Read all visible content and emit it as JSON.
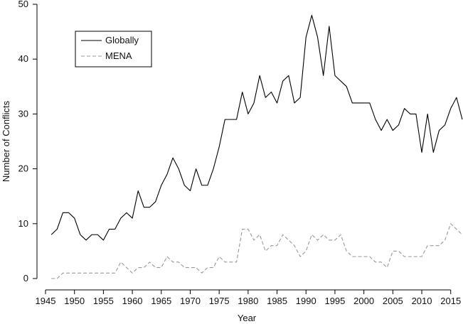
{
  "chart_data": {
    "type": "line",
    "xlabel": "Year",
    "ylabel": "Number of Conflicts",
    "xlim": [
      1945,
      2017
    ],
    "ylim": [
      0,
      50
    ],
    "xticks": [
      1945,
      1950,
      1955,
      1960,
      1965,
      1970,
      1975,
      1980,
      1985,
      1990,
      1995,
      2000,
      2005,
      2010,
      2015
    ],
    "yticks": [
      0,
      10,
      20,
      30,
      40,
      50
    ],
    "grid": false,
    "legend_position": "top-left",
    "x": [
      1946,
      1947,
      1948,
      1949,
      1950,
      1951,
      1952,
      1953,
      1954,
      1955,
      1956,
      1957,
      1958,
      1959,
      1960,
      1961,
      1962,
      1963,
      1964,
      1965,
      1966,
      1967,
      1968,
      1969,
      1970,
      1971,
      1972,
      1973,
      1974,
      1975,
      1976,
      1977,
      1978,
      1979,
      1980,
      1981,
      1982,
      1983,
      1984,
      1985,
      1986,
      1987,
      1988,
      1989,
      1990,
      1991,
      1992,
      1993,
      1994,
      1995,
      1996,
      1997,
      1998,
      1999,
      2000,
      2001,
      2002,
      2003,
      2004,
      2005,
      2006,
      2007,
      2008,
      2009,
      2010,
      2011,
      2012,
      2013,
      2014,
      2015,
      2016,
      2017
    ],
    "series": [
      {
        "name": "Globally",
        "style": "solid",
        "color": "#000000",
        "values": [
          8,
          9,
          12,
          12,
          11,
          8,
          7,
          8,
          8,
          7,
          9,
          9,
          11,
          12,
          11,
          16,
          13,
          13,
          14,
          17,
          19,
          22,
          20,
          17,
          16,
          20,
          17,
          17,
          20,
          24,
          29,
          29,
          29,
          34,
          30,
          32,
          37,
          33,
          34,
          32,
          36,
          37,
          32,
          33,
          44,
          48,
          44,
          37,
          46,
          37,
          36,
          35,
          32,
          32,
          32,
          32,
          29,
          27,
          29,
          27,
          28,
          31,
          30,
          30,
          23,
          30,
          23,
          27,
          28,
          31,
          33,
          29
        ]
      },
      {
        "name": "MENA",
        "style": "dashed",
        "color": "#999999",
        "values": [
          0,
          0,
          1,
          1,
          1,
          1,
          1,
          1,
          1,
          1,
          1,
          1,
          3,
          2,
          1,
          2,
          2,
          3,
          2,
          2,
          4,
          3,
          3,
          2,
          2,
          2,
          1,
          2,
          2,
          4,
          3,
          3,
          3,
          9,
          9,
          7,
          8,
          5,
          6,
          6,
          8,
          7,
          6,
          4,
          5,
          8,
          7,
          8,
          7,
          7,
          8,
          5,
          4,
          4,
          4,
          4,
          3,
          3,
          2,
          5,
          5,
          4,
          4,
          4,
          4,
          6,
          6,
          6,
          7,
          10,
          9,
          8
        ]
      }
    ]
  }
}
